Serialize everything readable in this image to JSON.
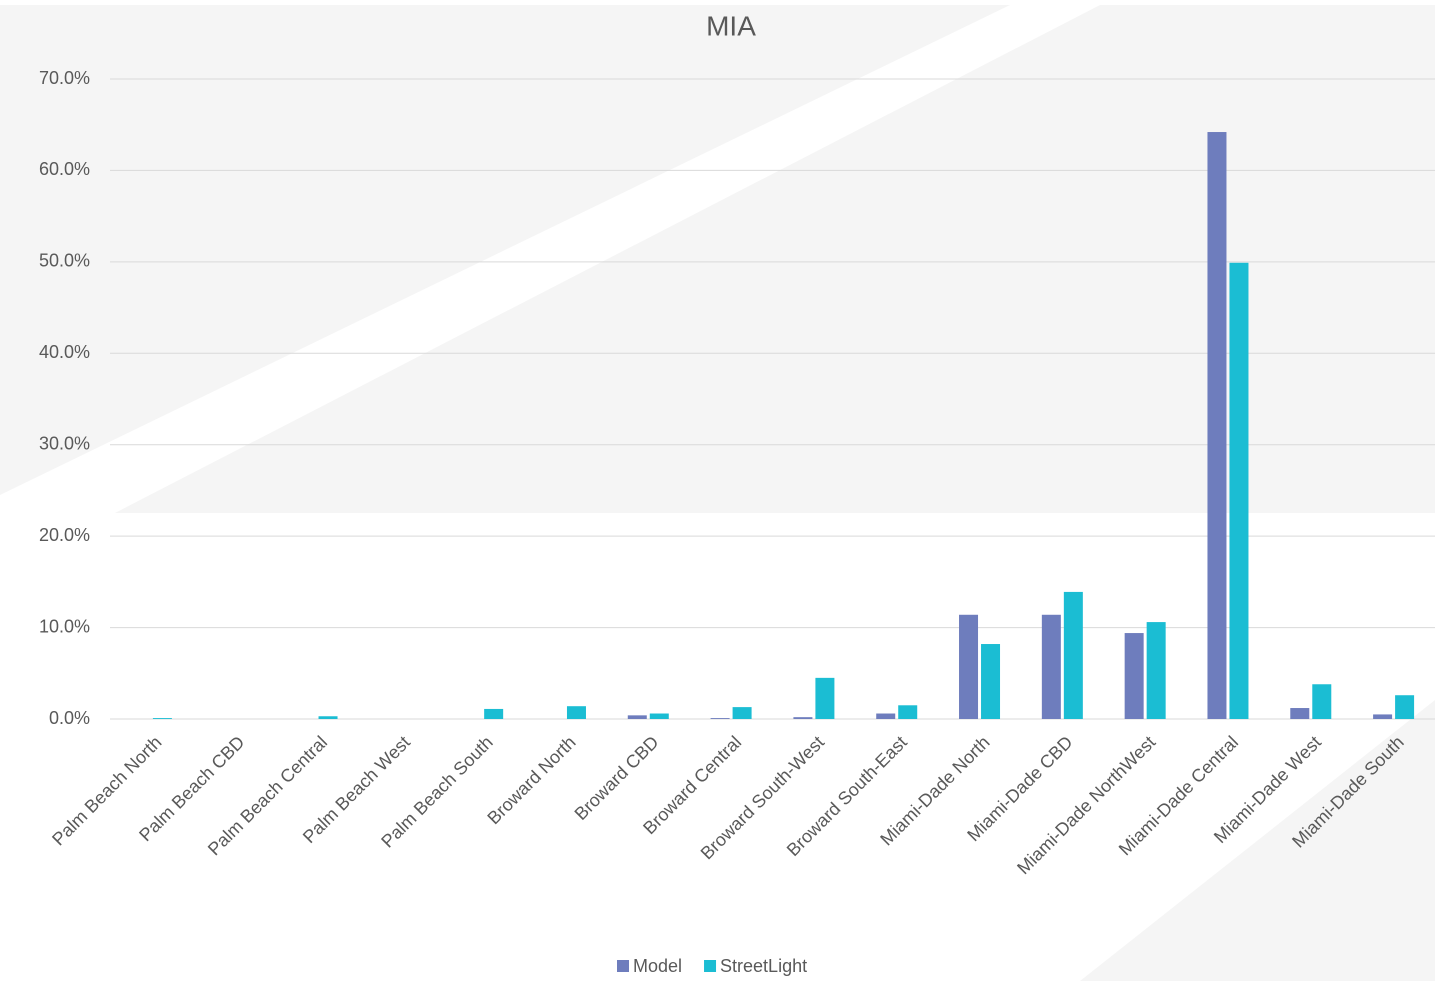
{
  "chart_data": {
    "type": "bar",
    "title": "MIA",
    "categories": [
      "Palm Beach North",
      "Palm Beach CBD",
      "Palm Beach Central",
      "Palm Beach West",
      "Palm Beach South",
      "Broward North",
      "Broward CBD",
      "Broward Central",
      "Broward South-West",
      "Broward South-East",
      "Miami-Dade North",
      "Miami-Dade CBD",
      "Miami-Dade NorthWest",
      "Miami-Dade Central",
      "Miami-Dade West",
      "Miami-Dade South"
    ],
    "series": [
      {
        "name": "Model",
        "color": "#6e7dbd",
        "values": [
          0,
          0,
          0,
          0,
          0,
          0,
          0.4,
          0.1,
          0.2,
          0.6,
          11.4,
          11.4,
          9.4,
          64.2,
          1.2,
          0.5
        ]
      },
      {
        "name": "StreetLight",
        "color": "#1bbdd3",
        "values": [
          0.1,
          0,
          0.3,
          0,
          1.1,
          1.4,
          0.6,
          1.3,
          4.5,
          1.5,
          8.2,
          13.9,
          10.6,
          49.9,
          3.8,
          2.6
        ]
      }
    ],
    "ylim": [
      0,
      70
    ],
    "yticks": [
      {
        "value": 0,
        "label": "0.0%"
      },
      {
        "value": 10,
        "label": "10.0%"
      },
      {
        "value": 20,
        "label": "20.0%"
      },
      {
        "value": 30,
        "label": "30.0%"
      },
      {
        "value": 40,
        "label": "40.0%"
      },
      {
        "value": 50,
        "label": "50.0%"
      },
      {
        "value": 60,
        "label": "60.0%"
      },
      {
        "value": 70,
        "label": "70.0%"
      }
    ],
    "grid": true,
    "legend": "bottom"
  }
}
